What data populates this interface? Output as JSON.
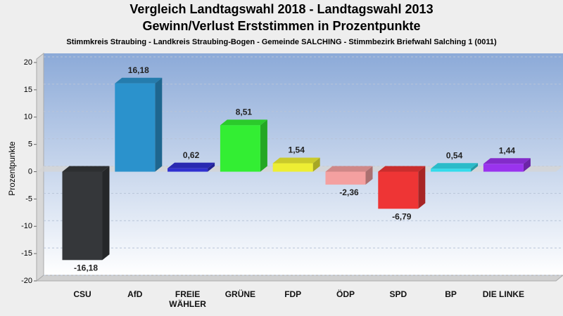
{
  "chart_data": {
    "type": "bar",
    "title": "Vergleich Landtagswahl 2018 - Landtagswahl 2013",
    "subtitle": "Gewinn/Verlust Erststimmen in Prozentpunkte",
    "description": "Stimmkreis Straubing - Landkreis Straubing-Bogen - Gemeinde SALCHING - Stimmbezirk Briefwahl Salching 1 (0011)",
    "ylabel": "Prozentpunkte",
    "categories": [
      "CSU",
      "AfD",
      "FREIE WÄHLER",
      "GRÜNE",
      "FDP",
      "ÖDP",
      "SPD",
      "BP",
      "DIE LINKE"
    ],
    "values": [
      -16.18,
      16.18,
      0.62,
      8.51,
      1.54,
      -2.36,
      -6.79,
      0.54,
      1.44
    ],
    "value_labels": [
      "-16,18",
      "16,18",
      "0,62",
      "8,51",
      "1,54",
      "-2,36",
      "-6,79",
      "0,54",
      "1,44"
    ],
    "colors": [
      "#35373a",
      "#2b92cc",
      "#3030d0",
      "#33ee33",
      "#eeee33",
      "#f4a0a0",
      "#ee3535",
      "#33dcec",
      "#9a33ee"
    ],
    "ylim": [
      -20,
      20
    ],
    "yticks": [
      20,
      15,
      10,
      5,
      0,
      -5,
      -10,
      -15,
      -20
    ],
    "grid": true
  }
}
